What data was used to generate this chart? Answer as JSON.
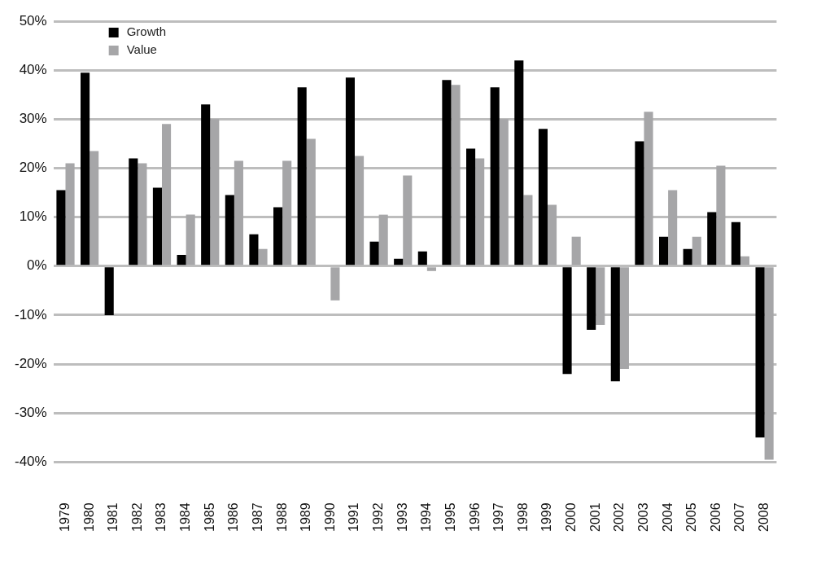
{
  "chart_data": {
    "type": "bar",
    "categories": [
      "1979",
      "1980",
      "1981",
      "1982",
      "1983",
      "1984",
      "1985",
      "1986",
      "1987",
      "1988",
      "1989",
      "1990",
      "1991",
      "1992",
      "1993",
      "1994",
      "1995",
      "1996",
      "1997",
      "1998",
      "1999",
      "2000",
      "2001",
      "2002",
      "2003",
      "2004",
      "2005",
      "2006",
      "2007",
      "2008"
    ],
    "series": [
      {
        "name": "Growth",
        "color": "#000000",
        "values": [
          15.5,
          39.5,
          -10,
          22,
          16,
          2.3,
          33,
          14.5,
          6.5,
          12,
          36.5,
          null,
          38.5,
          5,
          1.5,
          3,
          38,
          24,
          36.5,
          42,
          28,
          -22,
          -13,
          -23.5,
          25.5,
          6,
          3.5,
          11,
          9,
          -35
        ]
      },
      {
        "name": "Value",
        "color": "#a6a6a8",
        "values": [
          21,
          23.5,
          0,
          21,
          29,
          10.5,
          30,
          21.5,
          3.5,
          21.5,
          26,
          -7,
          22.5,
          10.5,
          18.5,
          -1,
          37,
          22,
          30,
          14.5,
          12.5,
          6,
          -12,
          -21,
          31.5,
          15.5,
          6,
          20.5,
          2,
          -39.5
        ]
      }
    ],
    "ylim": [
      -40,
      50
    ],
    "yticks": [
      {
        "value": -40,
        "label": "-40%"
      },
      {
        "value": -30,
        "label": "-30%"
      },
      {
        "value": -20,
        "label": "-20%"
      },
      {
        "value": -10,
        "label": "-10%"
      },
      {
        "value": 0,
        "label": "0%"
      },
      {
        "value": 10,
        "label": "10%"
      },
      {
        "value": 20,
        "label": "20%"
      },
      {
        "value": 30,
        "label": "30%"
      },
      {
        "value": 40,
        "label": "40%"
      },
      {
        "value": 50,
        "label": "50%"
      }
    ],
    "grid": "y",
    "legend": "top left"
  }
}
